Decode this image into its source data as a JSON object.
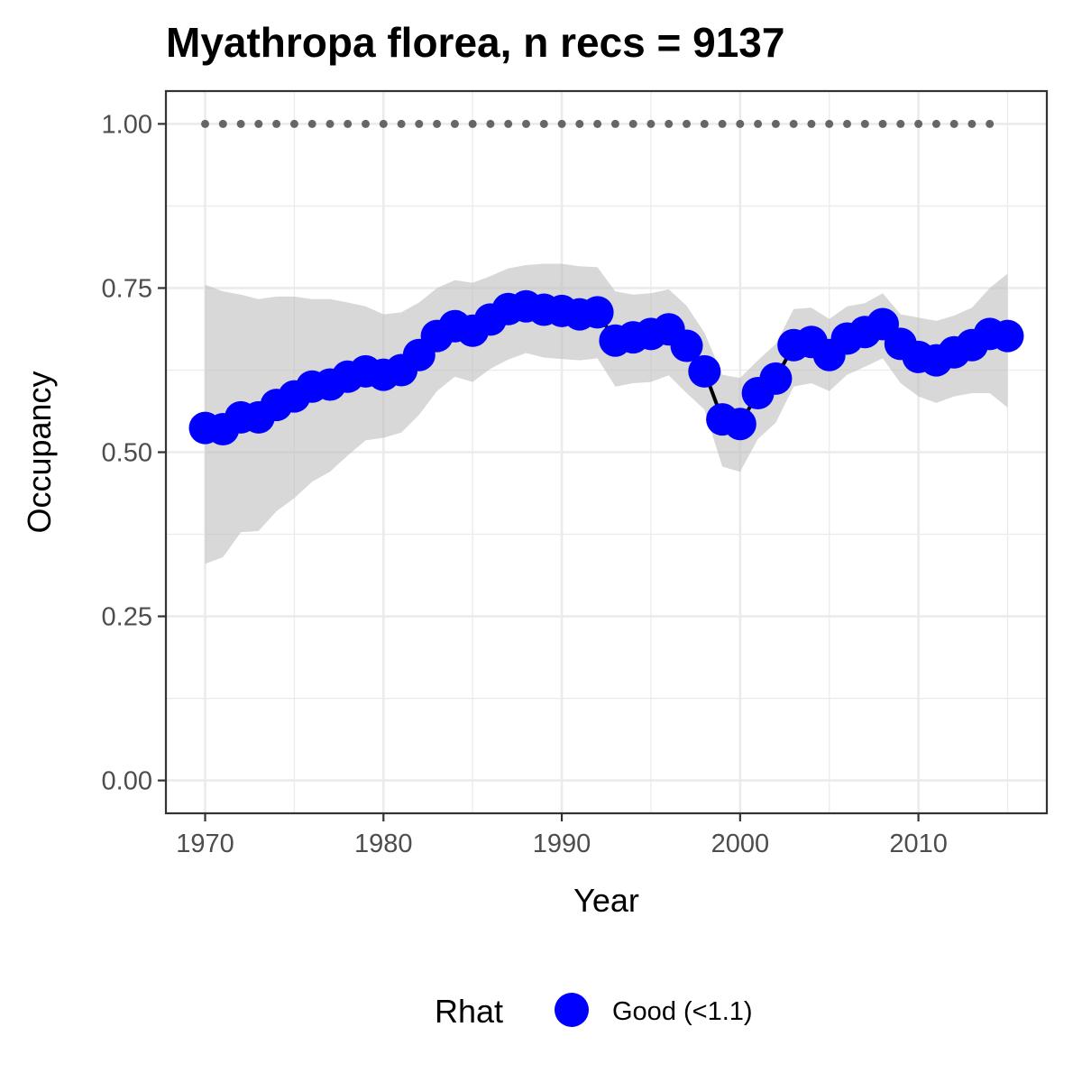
{
  "chart_data": {
    "type": "line",
    "title": "Myathropa florea, n recs = 9137",
    "xlabel": "Year",
    "ylabel": "Occupancy",
    "xlim": [
      1967.8,
      2017.2
    ],
    "ylim": [
      -0.05,
      1.05
    ],
    "x_ticks": [
      1970,
      1980,
      1990,
      2000,
      2010
    ],
    "x_tick_labels": [
      "1970",
      "1980",
      "1990",
      "2000",
      "2010"
    ],
    "y_ticks": [
      0,
      0.25,
      0.5,
      0.75,
      1.0
    ],
    "y_tick_labels": [
      "0.00",
      "0.25",
      "0.50",
      "0.75",
      "1.00"
    ],
    "grid": true,
    "legend": {
      "title": "Rhat",
      "position": "bottom",
      "entries": [
        {
          "label": "Good (<1.1)",
          "color": "#0000ff"
        }
      ]
    },
    "colors": {
      "points": "#0000ff",
      "line": "#000000",
      "ribbon": "#bebebe",
      "reference": "#666666",
      "grid": "#ebebeb",
      "panel_border": "#333333"
    },
    "series": [
      {
        "name": "Good (<1.1)",
        "x": [
          1970,
          1971,
          1972,
          1973,
          1974,
          1975,
          1976,
          1977,
          1978,
          1979,
          1980,
          1981,
          1982,
          1983,
          1984,
          1985,
          1986,
          1987,
          1988,
          1989,
          1990,
          1991,
          1992,
          1993,
          1994,
          1995,
          1996,
          1997,
          1998,
          1999,
          2000,
          2001,
          2002,
          2003,
          2004,
          2005,
          2006,
          2007,
          2008,
          2009,
          2010,
          2011,
          2012,
          2013,
          2014,
          2015
        ],
        "y": [
          0.537,
          0.535,
          0.553,
          0.553,
          0.572,
          0.585,
          0.6,
          0.603,
          0.615,
          0.623,
          0.618,
          0.625,
          0.648,
          0.677,
          0.692,
          0.685,
          0.702,
          0.718,
          0.722,
          0.717,
          0.715,
          0.71,
          0.713,
          0.67,
          0.675,
          0.68,
          0.687,
          0.662,
          0.623,
          0.55,
          0.543,
          0.59,
          0.612,
          0.663,
          0.668,
          0.648,
          0.673,
          0.683,
          0.695,
          0.665,
          0.645,
          0.64,
          0.652,
          0.663,
          0.68,
          0.677
        ]
      }
    ],
    "ribbon": {
      "x": [
        1970,
        1971,
        1972,
        1973,
        1974,
        1975,
        1976,
        1977,
        1978,
        1979,
        1980,
        1981,
        1982,
        1983,
        1984,
        1985,
        1986,
        1987,
        1988,
        1989,
        1990,
        1991,
        1992,
        1993,
        1994,
        1995,
        1996,
        1997,
        1998,
        1999,
        2000,
        2001,
        2002,
        2003,
        2004,
        2005,
        2006,
        2007,
        2008,
        2009,
        2010,
        2011,
        2012,
        2013,
        2014,
        2015
      ],
      "lower": [
        0.33,
        0.34,
        0.378,
        0.38,
        0.41,
        0.43,
        0.455,
        0.47,
        0.495,
        0.518,
        0.522,
        0.53,
        0.557,
        0.593,
        0.615,
        0.607,
        0.627,
        0.641,
        0.651,
        0.644,
        0.642,
        0.64,
        0.643,
        0.6,
        0.605,
        0.607,
        0.617,
        0.59,
        0.565,
        0.478,
        0.47,
        0.52,
        0.545,
        0.6,
        0.605,
        0.593,
        0.618,
        0.63,
        0.643,
        0.605,
        0.585,
        0.575,
        0.585,
        0.59,
        0.59,
        0.568
      ],
      "upper": [
        0.755,
        0.745,
        0.74,
        0.733,
        0.737,
        0.737,
        0.733,
        0.733,
        0.728,
        0.722,
        0.71,
        0.713,
        0.728,
        0.75,
        0.762,
        0.758,
        0.768,
        0.78,
        0.785,
        0.787,
        0.787,
        0.783,
        0.782,
        0.745,
        0.74,
        0.742,
        0.748,
        0.723,
        0.682,
        0.618,
        0.613,
        0.64,
        0.665,
        0.718,
        0.72,
        0.703,
        0.722,
        0.727,
        0.742,
        0.71,
        0.705,
        0.7,
        0.708,
        0.72,
        0.75,
        0.772
      ]
    },
    "reference_line": {
      "x": [
        1970,
        1971,
        1972,
        1973,
        1974,
        1975,
        1976,
        1977,
        1978,
        1979,
        1980,
        1981,
        1982,
        1983,
        1984,
        1985,
        1986,
        1987,
        1988,
        1989,
        1990,
        1991,
        1992,
        1993,
        1994,
        1995,
        1996,
        1997,
        1998,
        1999,
        2000,
        2001,
        2002,
        2003,
        2004,
        2005,
        2006,
        2007,
        2008,
        2009,
        2010,
        2011,
        2012,
        2013,
        2014
      ],
      "y": 1.0
    }
  }
}
